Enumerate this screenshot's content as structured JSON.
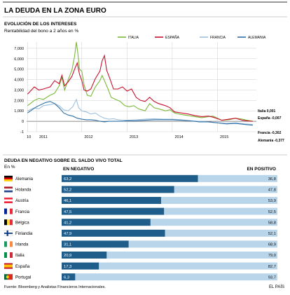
{
  "title": "LA DEUDA EN LA ZONA EURO",
  "chart_data": [
    {
      "type": "line",
      "title": "EVOLUCIÓN DE LOS INTERESES",
      "subtitle": "Rentabilidad del bono a 2 años en %",
      "x_tick_labels": [
        "10",
        "2011",
        "2012",
        "2013",
        "2014",
        "2015"
      ],
      "x_range": [
        2010.78,
        2015.86
      ],
      "y_tick_labels": [
        "7,000",
        "6,000",
        "5,000",
        "4,000",
        "3,000",
        "2,000",
        "1,000",
        "0",
        "-1"
      ],
      "ylim": [
        -1,
        7.6
      ],
      "grid": true,
      "legend_position": "top-right",
      "colors": {
        "Italia": "#7ab83a",
        "España": "#c8102e",
        "Francia": "#9fc0dc",
        "Alemania": "#2f6fa5"
      },
      "series": [
        {
          "name": "ITALIA",
          "points": [
            [
              2010.8,
              1.5
            ],
            [
              2010.95,
              2.0
            ],
            [
              2011.05,
              2.2
            ],
            [
              2011.15,
              2.1
            ],
            [
              2011.3,
              2.5
            ],
            [
              2011.4,
              2.7
            ],
            [
              2011.5,
              3.4
            ],
            [
              2011.56,
              4.2
            ],
            [
              2011.62,
              3.0
            ],
            [
              2011.7,
              4.0
            ],
            [
              2011.78,
              4.9
            ],
            [
              2011.84,
              6.2
            ],
            [
              2011.88,
              7.6
            ],
            [
              2011.91,
              6.6
            ],
            [
              2011.95,
              5.0
            ],
            [
              2012.0,
              4.8
            ],
            [
              2012.05,
              3.5
            ],
            [
              2012.12,
              2.5
            ],
            [
              2012.2,
              2.4
            ],
            [
              2012.3,
              3.3
            ],
            [
              2012.4,
              3.9
            ],
            [
              2012.45,
              4.4
            ],
            [
              2012.5,
              3.9
            ],
            [
              2012.58,
              3.1
            ],
            [
              2012.65,
              2.3
            ],
            [
              2012.75,
              2.1
            ],
            [
              2012.85,
              1.9
            ],
            [
              2012.95,
              1.5
            ],
            [
              2013.05,
              1.4
            ],
            [
              2013.15,
              1.5
            ],
            [
              2013.25,
              1.2
            ],
            [
              2013.4,
              1.0
            ],
            [
              2013.5,
              1.7
            ],
            [
              2013.6,
              1.3
            ],
            [
              2013.7,
              1.2
            ],
            [
              2013.85,
              1.0
            ],
            [
              2013.95,
              1.1
            ],
            [
              2014.05,
              0.8
            ],
            [
              2014.2,
              0.65
            ],
            [
              2014.35,
              0.55
            ],
            [
              2014.5,
              0.45
            ],
            [
              2014.65,
              0.35
            ],
            [
              2014.8,
              0.45
            ],
            [
              2014.9,
              0.5
            ],
            [
              2015.0,
              0.3
            ],
            [
              2015.1,
              0.1
            ],
            [
              2015.25,
              0.15
            ],
            [
              2015.4,
              0.3
            ],
            [
              2015.55,
              0.2
            ],
            [
              2015.65,
              0.1
            ],
            [
              2015.78,
              0.001
            ]
          ]
        },
        {
          "name": "ESPAÑA",
          "points": [
            [
              2010.8,
              2.6
            ],
            [
              2010.95,
              3.3
            ],
            [
              2011.05,
              3.0
            ],
            [
              2011.15,
              3.1
            ],
            [
              2011.3,
              3.3
            ],
            [
              2011.4,
              3.9
            ],
            [
              2011.5,
              3.6
            ],
            [
              2011.56,
              4.4
            ],
            [
              2011.62,
              3.4
            ],
            [
              2011.7,
              3.8
            ],
            [
              2011.78,
              4.3
            ],
            [
              2011.85,
              5.1
            ],
            [
              2011.9,
              5.6
            ],
            [
              2011.95,
              4.5
            ],
            [
              2012.0,
              3.9
            ],
            [
              2012.05,
              3.0
            ],
            [
              2012.12,
              2.9
            ],
            [
              2012.2,
              3.1
            ],
            [
              2012.3,
              4.1
            ],
            [
              2012.4,
              4.8
            ],
            [
              2012.45,
              5.8
            ],
            [
              2012.5,
              6.3
            ],
            [
              2012.55,
              4.9
            ],
            [
              2012.62,
              4.1
            ],
            [
              2012.7,
              3.1
            ],
            [
              2012.8,
              3.1
            ],
            [
              2012.9,
              3.3
            ],
            [
              2013.0,
              2.9
            ],
            [
              2013.1,
              3.1
            ],
            [
              2013.2,
              2.3
            ],
            [
              2013.3,
              2.0
            ],
            [
              2013.4,
              1.9
            ],
            [
              2013.5,
              2.3
            ],
            [
              2013.6,
              1.9
            ],
            [
              2013.7,
              1.7
            ],
            [
              2013.85,
              1.5
            ],
            [
              2013.95,
              1.3
            ],
            [
              2014.05,
              0.9
            ],
            [
              2014.2,
              0.8
            ],
            [
              2014.35,
              0.7
            ],
            [
              2014.5,
              0.55
            ],
            [
              2014.65,
              0.45
            ],
            [
              2014.8,
              0.5
            ],
            [
              2014.9,
              0.4
            ],
            [
              2015.0,
              0.25
            ],
            [
              2015.1,
              0.1
            ],
            [
              2015.25,
              0.2
            ],
            [
              2015.4,
              0.3
            ],
            [
              2015.55,
              0.1
            ],
            [
              2015.65,
              0.05
            ],
            [
              2015.78,
              -0.007
            ]
          ]
        },
        {
          "name": "FRANCIA",
          "points": [
            [
              2010.8,
              1.0
            ],
            [
              2010.95,
              1.3
            ],
            [
              2011.05,
              1.2
            ],
            [
              2011.15,
              1.5
            ],
            [
              2011.3,
              1.6
            ],
            [
              2011.4,
              1.7
            ],
            [
              2011.5,
              1.5
            ],
            [
              2011.6,
              1.1
            ],
            [
              2011.7,
              1.0
            ],
            [
              2011.8,
              1.4
            ],
            [
              2011.88,
              2.1
            ],
            [
              2011.93,
              1.3
            ],
            [
              2012.0,
              1.0
            ],
            [
              2012.1,
              0.9
            ],
            [
              2012.2,
              0.7
            ],
            [
              2012.3,
              0.8
            ],
            [
              2012.4,
              0.5
            ],
            [
              2012.5,
              0.3
            ],
            [
              2012.6,
              0.2
            ],
            [
              2012.7,
              0.25
            ],
            [
              2012.8,
              0.15
            ],
            [
              2012.9,
              0.1
            ],
            [
              2013.0,
              0.1
            ],
            [
              2013.2,
              0.15
            ],
            [
              2013.4,
              0.2
            ],
            [
              2013.6,
              0.25
            ],
            [
              2013.8,
              0.2
            ],
            [
              2014.0,
              0.2
            ],
            [
              2014.2,
              0.15
            ],
            [
              2014.4,
              0.05
            ],
            [
              2014.6,
              0.0
            ],
            [
              2014.8,
              -0.05
            ],
            [
              2015.0,
              -0.15
            ],
            [
              2015.2,
              -0.2
            ],
            [
              2015.4,
              -0.15
            ],
            [
              2015.6,
              -0.25
            ],
            [
              2015.78,
              -0.302
            ]
          ]
        },
        {
          "name": "ALEMANIA",
          "points": [
            [
              2010.8,
              0.8
            ],
            [
              2010.9,
              1.1
            ],
            [
              2011.0,
              1.4
            ],
            [
              2011.1,
              1.6
            ],
            [
              2011.2,
              1.8
            ],
            [
              2011.3,
              1.9
            ],
            [
              2011.4,
              1.7
            ],
            [
              2011.5,
              1.3
            ],
            [
              2011.6,
              0.8
            ],
            [
              2011.7,
              0.6
            ],
            [
              2011.8,
              0.5
            ],
            [
              2011.9,
              0.3
            ],
            [
              2012.0,
              0.2
            ],
            [
              2012.1,
              0.15
            ],
            [
              2012.2,
              0.15
            ],
            [
              2012.3,
              0.1
            ],
            [
              2012.4,
              0.0
            ],
            [
              2012.5,
              -0.05
            ],
            [
              2012.6,
              0.0
            ],
            [
              2012.7,
              0.0
            ],
            [
              2012.8,
              0.0
            ],
            [
              2012.9,
              0.0
            ],
            [
              2013.0,
              0.05
            ],
            [
              2013.2,
              0.05
            ],
            [
              2013.4,
              0.1
            ],
            [
              2013.6,
              0.15
            ],
            [
              2013.8,
              0.15
            ],
            [
              2014.0,
              0.15
            ],
            [
              2014.2,
              0.1
            ],
            [
              2014.4,
              0.05
            ],
            [
              2014.6,
              -0.05
            ],
            [
              2014.8,
              -0.05
            ],
            [
              2015.0,
              -0.15
            ],
            [
              2015.2,
              -0.25
            ],
            [
              2015.4,
              -0.2
            ],
            [
              2015.6,
              -0.3
            ],
            [
              2015.78,
              -0.377
            ]
          ]
        }
      ],
      "end_labels": [
        {
          "text": "Italia 0,001",
          "value": 0.001
        },
        {
          "text": "España -0,007",
          "value": -0.007
        },
        {
          "text": "Francia -0,302",
          "value": -0.302
        },
        {
          "text": "Alemania -0,377",
          "value": -0.377
        }
      ]
    },
    {
      "type": "bar",
      "title": "DEUDA EN NEGATIVO SOBRE EL SALDO VIVO TOTAL",
      "unit_label": "En %",
      "neg_header": "EN NEGATIVO",
      "pos_header": "EN POSITIVO",
      "stacked": true,
      "xlim": [
        0,
        100
      ],
      "colors": {
        "negative": "#1f5e8a",
        "positive": "#b9d5ea"
      },
      "categories": [
        "Alemania",
        "Holanda",
        "Austria",
        "Francia",
        "Bélgica",
        "Finlandia",
        "Irlanda",
        "Italia",
        "España",
        "Portugal"
      ],
      "negative_labels": [
        "63,2",
        "52,2",
        "46,1",
        "47,5",
        "41,2",
        "47,9",
        "31,1",
        "20,9",
        "17,3",
        "6,3"
      ],
      "negative_values": [
        63.2,
        52.2,
        46.1,
        47.5,
        41.2,
        47.9,
        31.1,
        20.9,
        17.3,
        6.3
      ],
      "positive_labels": [
        "36,8",
        "47,8",
        "53,9",
        "52,5",
        "58,8",
        "52,1",
        "68,9",
        "79,0",
        "82,7",
        "93,7"
      ],
      "positive_values": [
        36.8,
        47.8,
        53.9,
        52.5,
        58.8,
        52.1,
        68.9,
        79.0,
        82.7,
        93.7
      ],
      "flags": [
        {
          "type": "h",
          "colors": [
            "#000000",
            "#dd0000",
            "#ffce00"
          ]
        },
        {
          "type": "h",
          "colors": [
            "#ae1c28",
            "#ffffff",
            "#21468b"
          ]
        },
        {
          "type": "h",
          "colors": [
            "#ed2939",
            "#ffffff",
            "#ed2939"
          ]
        },
        {
          "type": "v",
          "colors": [
            "#002395",
            "#ffffff",
            "#ed2939"
          ]
        },
        {
          "type": "v",
          "colors": [
            "#000000",
            "#fae042",
            "#ed2939"
          ]
        },
        {
          "type": "cross",
          "colors": [
            "#ffffff",
            "#003580"
          ]
        },
        {
          "type": "v",
          "colors": [
            "#169b62",
            "#ffffff",
            "#ff883e"
          ]
        },
        {
          "type": "v",
          "colors": [
            "#009246",
            "#ffffff",
            "#ce2b37"
          ]
        },
        {
          "type": "hs",
          "colors": [
            "#c60b1e",
            "#ffc400",
            "#c60b1e"
          ]
        },
        {
          "type": "pt",
          "colors": [
            "#046a38",
            "#da291c",
            "#ffd000"
          ]
        }
      ]
    }
  ],
  "source": "Fuente: Bloomberg y Analistas Financieros Internacionales.",
  "brand": "EL PAÍS"
}
